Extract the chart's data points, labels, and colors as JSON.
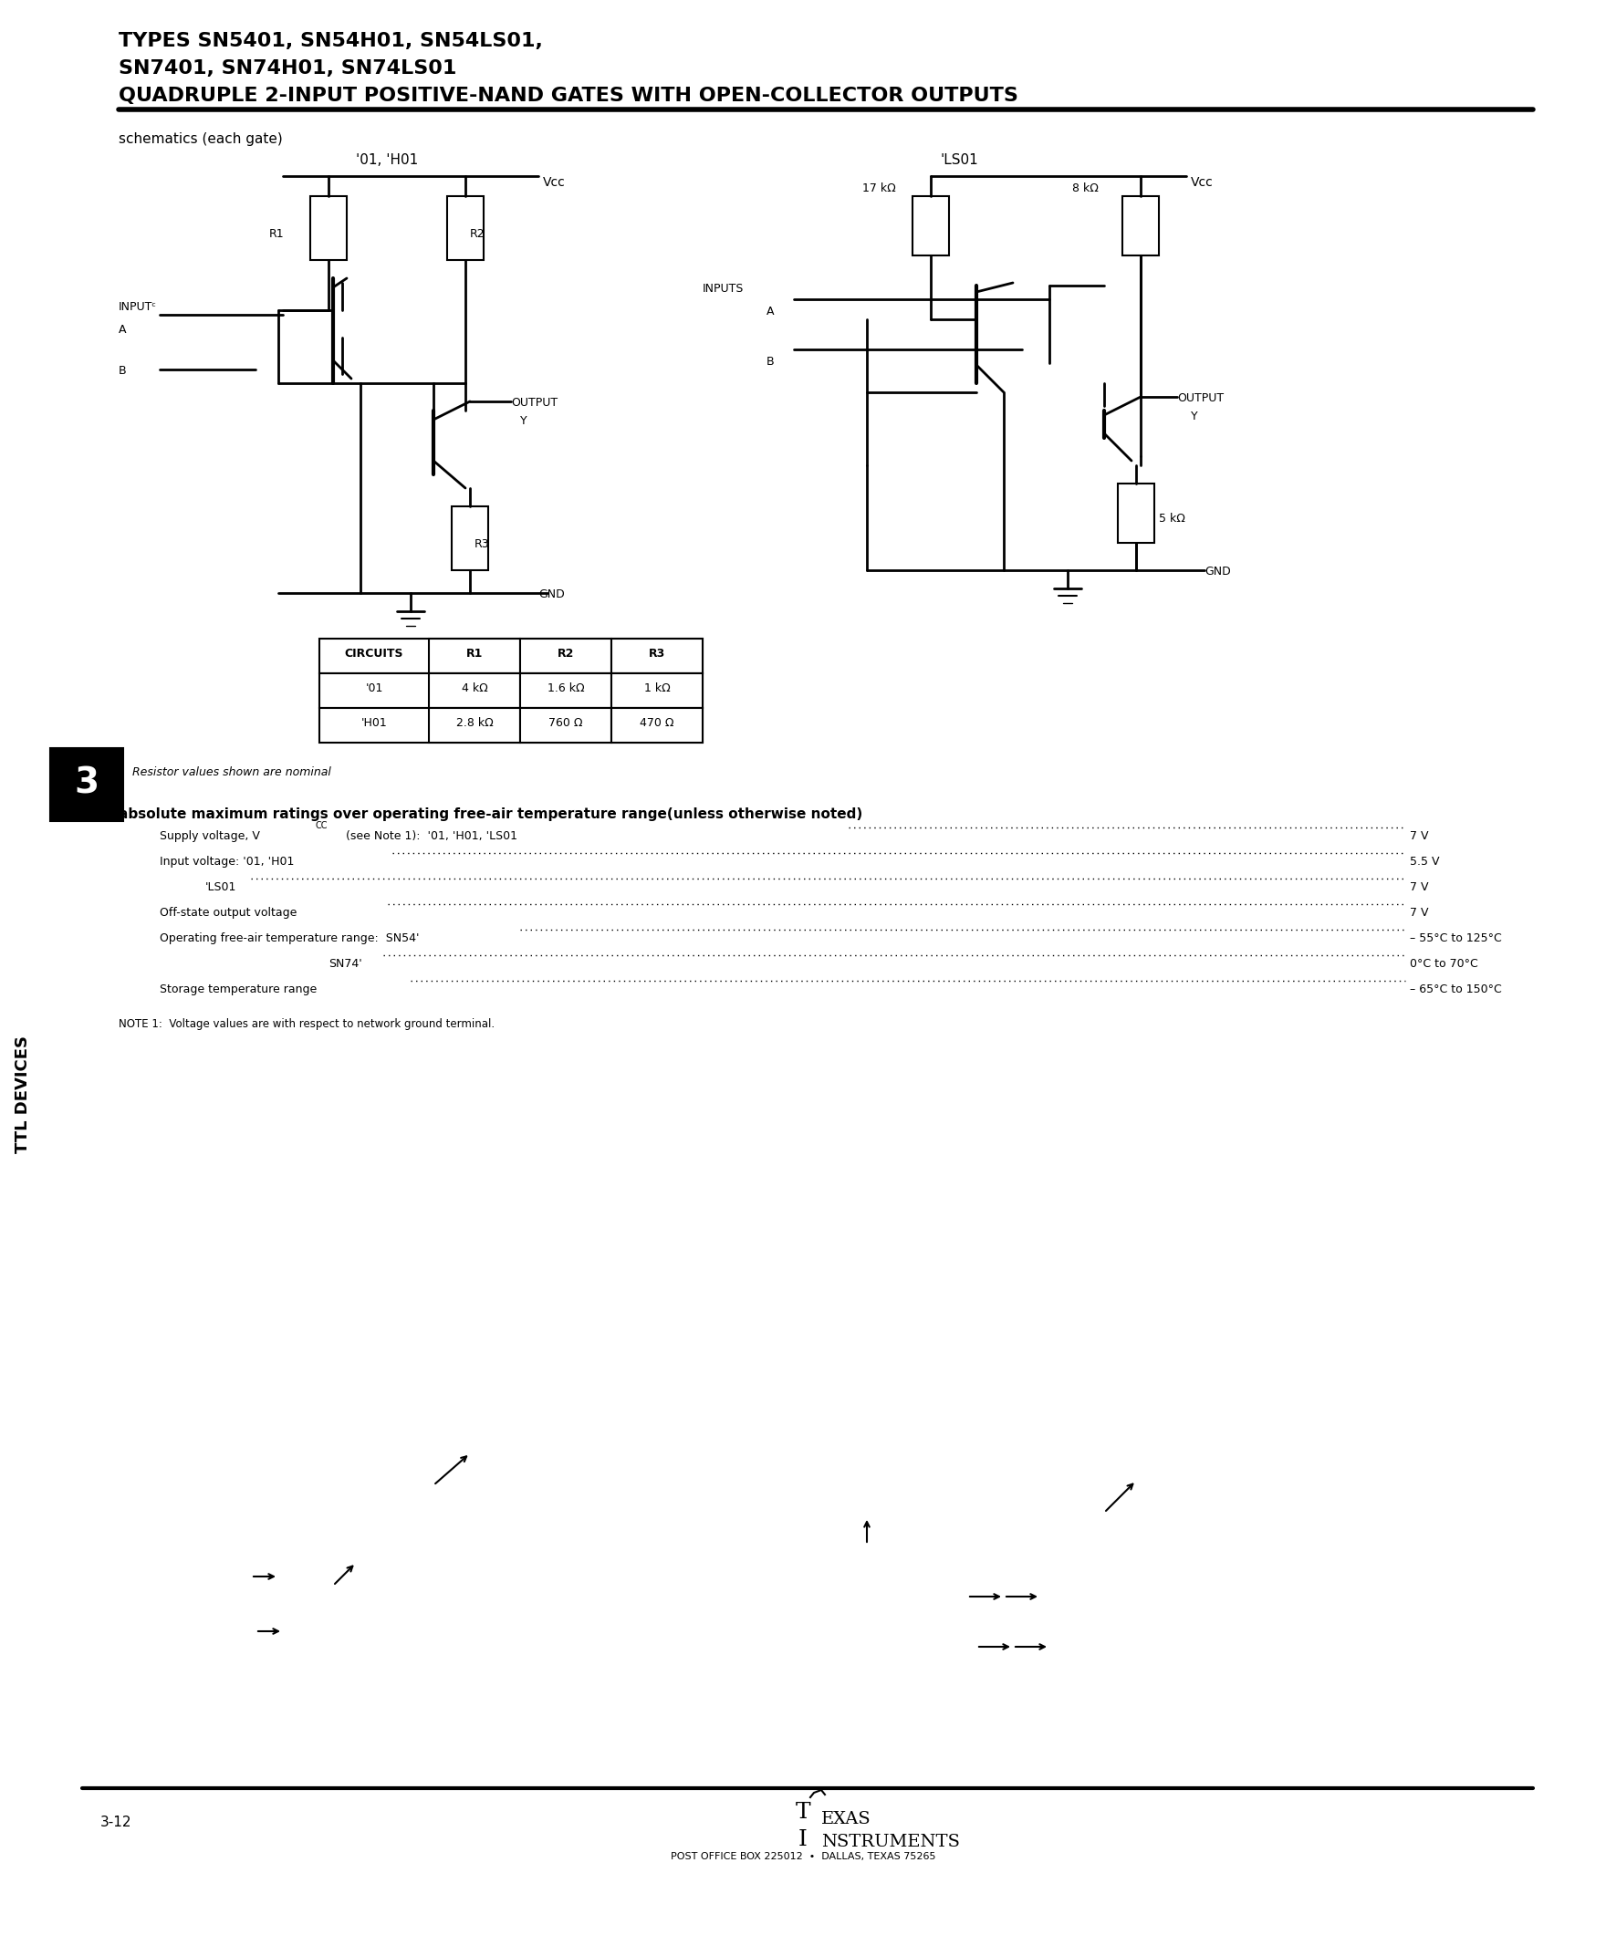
{
  "title_line1": "TYPES SN5401, SN54H01, SN54LS01,",
  "title_line2": "SN7401, SN74H01, SN74LS01",
  "title_line3": "QUADRUPLE 2-INPUT POSITIVE-NAND GATES WITH OPEN-COLLECTOR OUTPUTS",
  "section_label": "schematics (each gate)",
  "circuit1_title": "'01, 'H01",
  "circuit2_title": "'LS01",
  "table_headers": [
    "CIRCUITS",
    "R1",
    "R2",
    "R3"
  ],
  "table_row1": [
    "'01",
    "4 kΩ",
    "1.6 kΩ",
    "1 kΩ"
  ],
  "table_row2": [
    "'H01",
    "2.8 kΩ",
    "760 Ω",
    "470 Ω"
  ],
  "note_resistor": "Resistor values shown are nominal",
  "section_title": "absolute maximum ratings over operating free-air temperature range(unless otherwise noted)",
  "rating1_label": "Supply voltage, Vᴄᴄ (see Note 1):",
  "rating1_detail": "'01, 'H01, 'LS01",
  "rating1_value": "7 V",
  "rating2_label": "Input voltage: '01, 'H01",
  "rating2_value": "5.5 V",
  "rating3_label": "'LS01",
  "rating3_value": "7 V",
  "rating4_label": "Off-state output voltage",
  "rating4_value": "7 V",
  "rating5_label": "Operating free-air temperature range:  SN54'",
  "rating5_value": "– 55°C to 125°C",
  "rating6_label": "SN74'",
  "rating6_value": "0°C to 70°C",
  "rating7_label": "Storage temperature range",
  "rating7_value": "– 65°C to 150°C",
  "note1": "NOTE 1:  Voltage values are with respect to network ground terminal.",
  "page_number": "3-12",
  "footer_line1": "TEXAS",
  "footer_line2": "INSTRUMENTS",
  "footer_line3": "POST OFFICE BOX 225012  •  DALLAS, TEXAS 75265",
  "bg_color": "#ffffff",
  "text_color": "#000000",
  "section_num": "3"
}
